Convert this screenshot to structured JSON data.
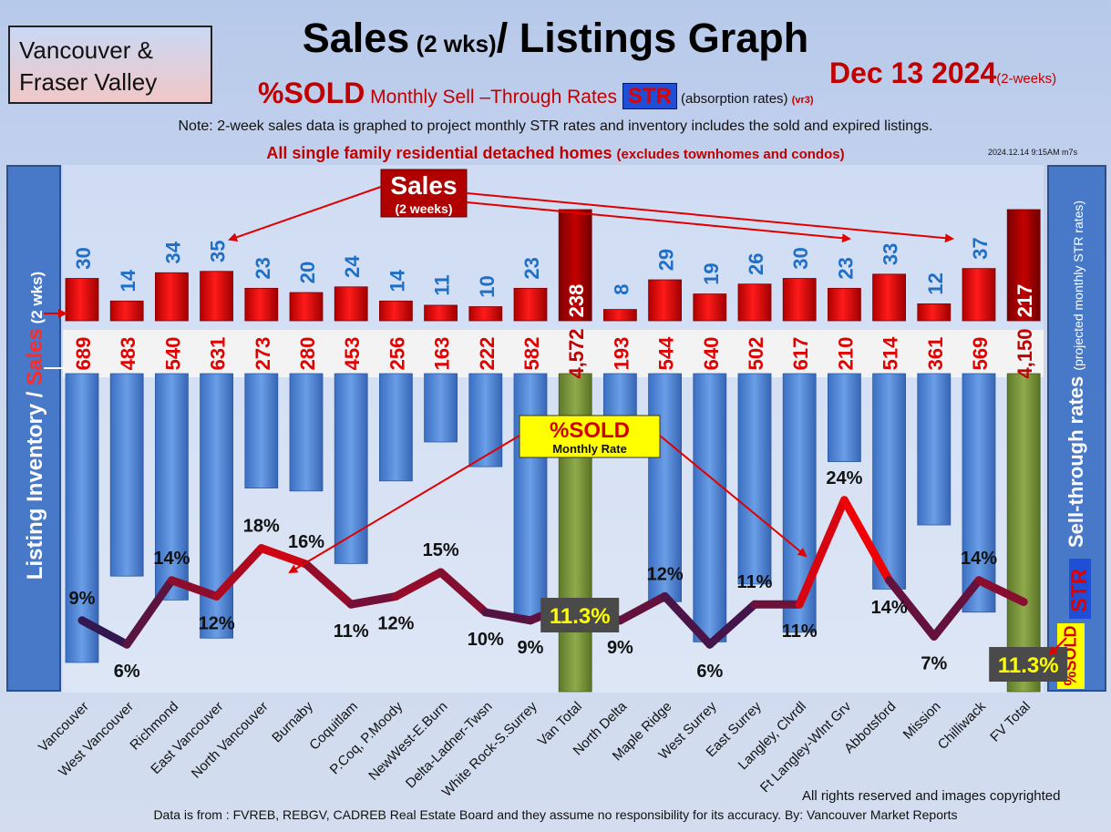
{
  "header": {
    "region_line1": "Vancouver &",
    "region_line2": "Fraser Valley",
    "title_part1": "Sales",
    "title_part2": " (2 wks)",
    "title_part3": "/ Listings Graph",
    "date": "Dec 13  2024",
    "date_suffix": "(2-weeks)",
    "subtitle_sold": "%SOLD",
    "subtitle_rates": " Monthly Sell –Through Rates ",
    "subtitle_str": "STR",
    "subtitle_absorption": "   (absorption rates) ",
    "subtitle_version": "(vr3)",
    "note": "Note: 2-week sales data is graphed to project monthly STR rates and inventory includes the sold and expired listings.",
    "scope_main": "All single family residential detached homes ",
    "scope_sub": "(excludes townhomes and condos)",
    "timestamp": "2024.12.14 9:15AM m7s"
  },
  "axis_labels": {
    "left_part1": "Listing Inventory / ",
    "left_part2": "Sales",
    "left_part3": " (2  wks)",
    "right_main": "Sell-through rates ",
    "right_sub": "(projected monthly STR rates)",
    "right_str": "STR",
    "right_sold": "%SOLD"
  },
  "callouts": {
    "sales": "Sales",
    "sales_sub": "(2 weeks)",
    "sold": "%SOLD",
    "sold_sub": "Monthly Rate"
  },
  "footer": {
    "copyright": "All rights reserved and  images copyrighted",
    "source": "Data is from : FVREB, REBGV, CADREB Real Estate Board and they assume no responsibility for its accuracy. By: Vancouver Market Reports"
  },
  "colors": {
    "sales_bar": "#e00000",
    "total_sales_bar": "#a30000",
    "inventory_bar": "#4f86d6",
    "total_inventory_bar": "#7d9640",
    "str_line_high": "#ff0000",
    "str_line_low": "#1a1a5a",
    "sales_value_text": "#1f6fc7"
  },
  "chart_data": {
    "type": "bar",
    "categories": [
      "Vancouver",
      "West Vancouver",
      "Richmond",
      "East Vancouver",
      "North Vancouver",
      "Burnaby",
      "Coquitlam",
      "P.Coq, P.Moody",
      "NewWest-E.Burn",
      "Delta-Ladner-Twsn",
      "White Rock-S.Surrey",
      "Van Total",
      "North Delta",
      "Maple Ridge",
      "West Surrey",
      "East Surrey",
      "Langley, Clvrdl",
      "Ft Langley-Wlnt Grv",
      "Abbotsford",
      "Mission",
      "Chilliwack",
      "FV Total"
    ],
    "series": [
      {
        "name": "Sales",
        "values": [
          30,
          14,
          34,
          35,
          23,
          20,
          24,
          14,
          11,
          10,
          23,
          238,
          8,
          29,
          19,
          26,
          30,
          23,
          33,
          12,
          37,
          217
        ]
      },
      {
        "name": "Listing Inventory",
        "values": [
          689,
          483,
          540,
          631,
          273,
          280,
          453,
          256,
          163,
          222,
          582,
          4572,
          193,
          544,
          640,
          502,
          617,
          210,
          514,
          361,
          569,
          4150
        ]
      },
      {
        "name": "%SOLD",
        "values": [
          9,
          6,
          14,
          12,
          18,
          16,
          11,
          12,
          15,
          10,
          9,
          11.3,
          9,
          12,
          6,
          11,
          11,
          24,
          14,
          7,
          14,
          11.3
        ]
      }
    ],
    "sales_labels": [
      "30",
      "14",
      "34",
      "35",
      "23",
      "20",
      "24",
      "14",
      "11",
      "10",
      "23",
      "238",
      "8",
      "29",
      "19",
      "26",
      "30",
      "23",
      "33",
      "12",
      "37",
      "217"
    ],
    "inventory_labels": [
      "689",
      "483",
      "540",
      "631",
      "273",
      "280",
      "453",
      "256",
      "163",
      "222",
      "582",
      "4,572",
      "193",
      "544",
      "640",
      "502",
      "617",
      "210",
      "514",
      "361",
      "569",
      "4,150"
    ],
    "str_labels": [
      "9%",
      "6%",
      "14%",
      "12%",
      "18%",
      "16%",
      "11%",
      "12%",
      "15%",
      "10%",
      "9%",
      "11.3%",
      "9%",
      "12%",
      "6%",
      "11%",
      "11%",
      "24%",
      "14%",
      "7%",
      "14%",
      "11.3%"
    ],
    "total_indices": [
      11,
      21
    ],
    "grid": false
  }
}
